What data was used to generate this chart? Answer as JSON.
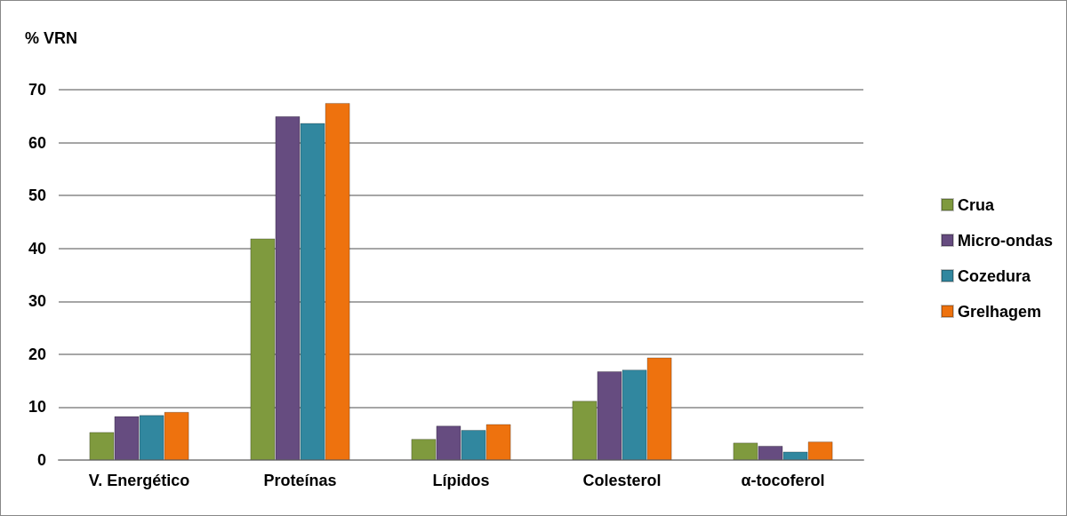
{
  "chart_data": {
    "type": "bar",
    "ylabel": "% VRN",
    "categories": [
      "V. Energético",
      "Proteínas",
      "Lípidos",
      "Colesterol",
      "α-tocoferol"
    ],
    "series": [
      {
        "name": "Crua",
        "color": "#7f9a3e",
        "values": [
          5.3,
          41.9,
          4.0,
          11.2,
          3.3
        ]
      },
      {
        "name": "Micro-ondas",
        "color": "#664c80",
        "values": [
          8.3,
          65.0,
          6.5,
          16.8,
          2.7
        ]
      },
      {
        "name": "Cozedura",
        "color": "#31879f",
        "values": [
          8.5,
          63.7,
          5.7,
          17.1,
          1.6
        ]
      },
      {
        "name": "Grelhagem",
        "color": "#ee720e",
        "values": [
          9.1,
          67.5,
          6.8,
          19.4,
          3.5
        ]
      }
    ],
    "ylim": [
      0,
      70
    ],
    "yticks": [
      0,
      10,
      20,
      30,
      40,
      50,
      60,
      70
    ],
    "grid": "y",
    "legend": "right"
  }
}
